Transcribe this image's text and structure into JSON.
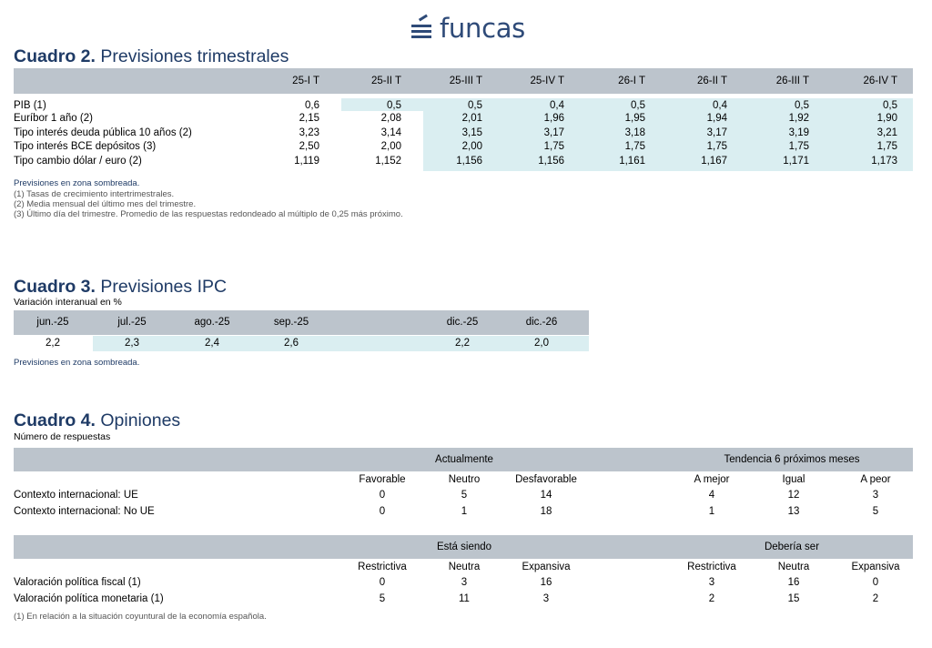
{
  "logo": {
    "text": "funcas"
  },
  "c2": {
    "title_bold": "Cuadro 2.",
    "title_rest": "Previsiones trimestrales",
    "cols": [
      "25-I T",
      "25-II T",
      "25-III T",
      "25-IV T",
      "26-I T",
      "26-II T",
      "26-III T",
      "26-IV T"
    ],
    "rows": [
      {
        "label": "PIB (1)",
        "values": [
          "0,6",
          "0,5",
          "0,5",
          "0,4",
          "0,5",
          "0,4",
          "0,5",
          "0,5"
        ]
      },
      {
        "label": "Euríbor 1 año (2)",
        "values": [
          "2,15",
          "2,08",
          "2,01",
          "1,96",
          "1,95",
          "1,94",
          "1,92",
          "1,90"
        ]
      },
      {
        "label": "Tipo interés deuda pública 10 años (2)",
        "values": [
          "3,23",
          "3,14",
          "3,15",
          "3,17",
          "3,18",
          "3,17",
          "3,19",
          "3,21"
        ]
      },
      {
        "label": "Tipo interés BCE depósitos (3)",
        "values": [
          "2,50",
          "2,00",
          "2,00",
          "1,75",
          "1,75",
          "1,75",
          "1,75",
          "1,75"
        ]
      },
      {
        "label": "Tipo cambio dólar / euro (2)",
        "values": [
          "1,119",
          "1,152",
          "1,156",
          "1,156",
          "1,161",
          "1,167",
          "1,171",
          "1,173"
        ]
      }
    ],
    "notes": [
      "Previsiones en zona sombreada.",
      "(1) Tasas de crecimiento intertrimestrales.",
      "(2) Media mensual del último mes del trimestre.",
      "(3) Último día del trimestre. Promedio de las respuestas redondeado al múltiplo de 0,25 más próximo."
    ]
  },
  "c3": {
    "title_bold": "Cuadro 3.",
    "title_rest": "Previsiones IPC",
    "subtitle": "Variación interanual en %",
    "cols": [
      "jun.-25",
      "jul.-25",
      "ago.-25",
      "sep.-25",
      "dic.-25",
      "dic.-26"
    ],
    "values": [
      "2,2",
      "2,3",
      "2,4",
      "2,6",
      "2,2",
      "2,0"
    ],
    "note": "Previsiones en zona sombreada."
  },
  "c4": {
    "title_bold": "Cuadro 4.",
    "title_rest": "Opiniones",
    "subtitle": "Número de respuestas",
    "t1": {
      "group1": "Actualmente",
      "group2": "Tendencia 6 próximos meses",
      "cols": [
        "Favorable",
        "Neutro",
        "Desfavorable",
        "A mejor",
        "Igual",
        "A peor"
      ],
      "rows": [
        {
          "label": "Contexto internacional:  UE",
          "values": [
            "0",
            "5",
            "14",
            "4",
            "12",
            "3"
          ]
        },
        {
          "label": "Contexto internacional: No UE",
          "values": [
            "0",
            "1",
            "18",
            "1",
            "13",
            "5"
          ]
        }
      ]
    },
    "t2": {
      "group1": "Está siendo",
      "group2": "Debería ser",
      "cols": [
        "Restrictiva",
        "Neutra",
        "Expansiva",
        "Restrictiva",
        "Neutra",
        "Expansiva"
      ],
      "rows": [
        {
          "label": "Valoración política fiscal (1)",
          "values": [
            "0",
            "3",
            "16",
            "3",
            "16",
            "0"
          ]
        },
        {
          "label": "Valoración política monetaria (1)",
          "values": [
            "5",
            "11",
            "3",
            "2",
            "15",
            "2"
          ]
        }
      ]
    },
    "note": "(1) En relación a la situación coyuntural de la economía española."
  }
}
